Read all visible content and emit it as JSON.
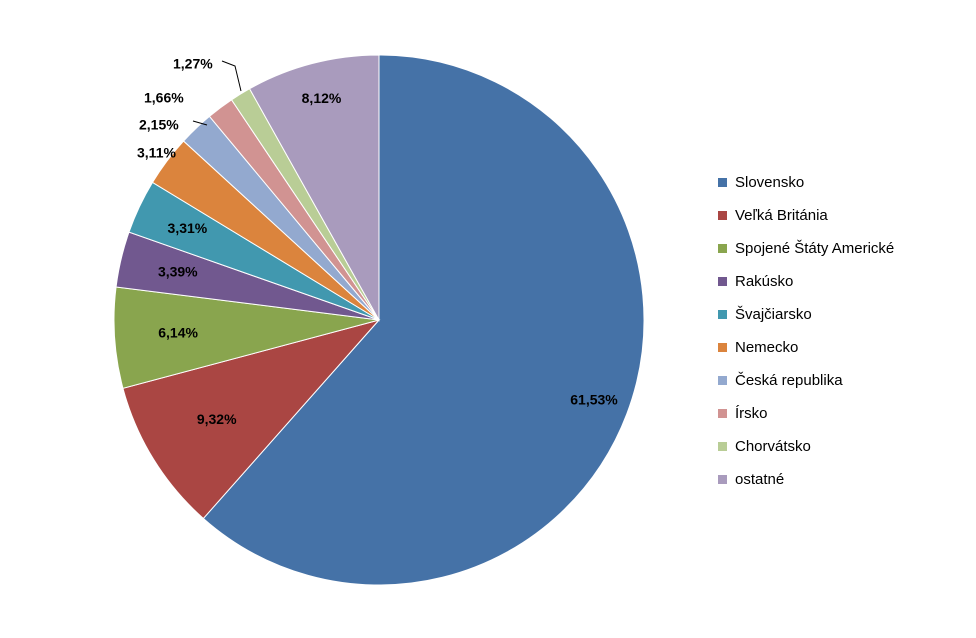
{
  "chart_data": {
    "type": "pie",
    "title": "",
    "legend_position": "right",
    "slices": [
      {
        "name": "Slovensko",
        "value": 61.53,
        "label": "61,53%",
        "color": "#4572A7"
      },
      {
        "name": "Veľká Británia",
        "value": 9.32,
        "label": "9,32%",
        "color": "#AA4643"
      },
      {
        "name": "Spojené Štáty Americké",
        "value": 6.14,
        "label": "6,14%",
        "color": "#89A54E"
      },
      {
        "name": "Rakúsko",
        "value": 3.39,
        "label": "3,39%",
        "color": "#71588F"
      },
      {
        "name": "Švajčiarsko",
        "value": 3.31,
        "label": "3,31%",
        "color": "#4198AF"
      },
      {
        "name": "Nemecko",
        "value": 3.11,
        "label": "3,11%",
        "color": "#DB843D"
      },
      {
        "name": "Česká republika",
        "value": 2.15,
        "label": "2,15%",
        "color": "#93A9CF"
      },
      {
        "name": "Írsko",
        "value": 1.66,
        "label": "1,66%",
        "color": "#D19392"
      },
      {
        "name": "Chorvátsko",
        "value": 1.27,
        "label": "1,27%",
        "color": "#B9CD96"
      },
      {
        "name": "ostatné",
        "value": 8.12,
        "label": "8,12%",
        "color": "#A99BBD"
      }
    ]
  }
}
